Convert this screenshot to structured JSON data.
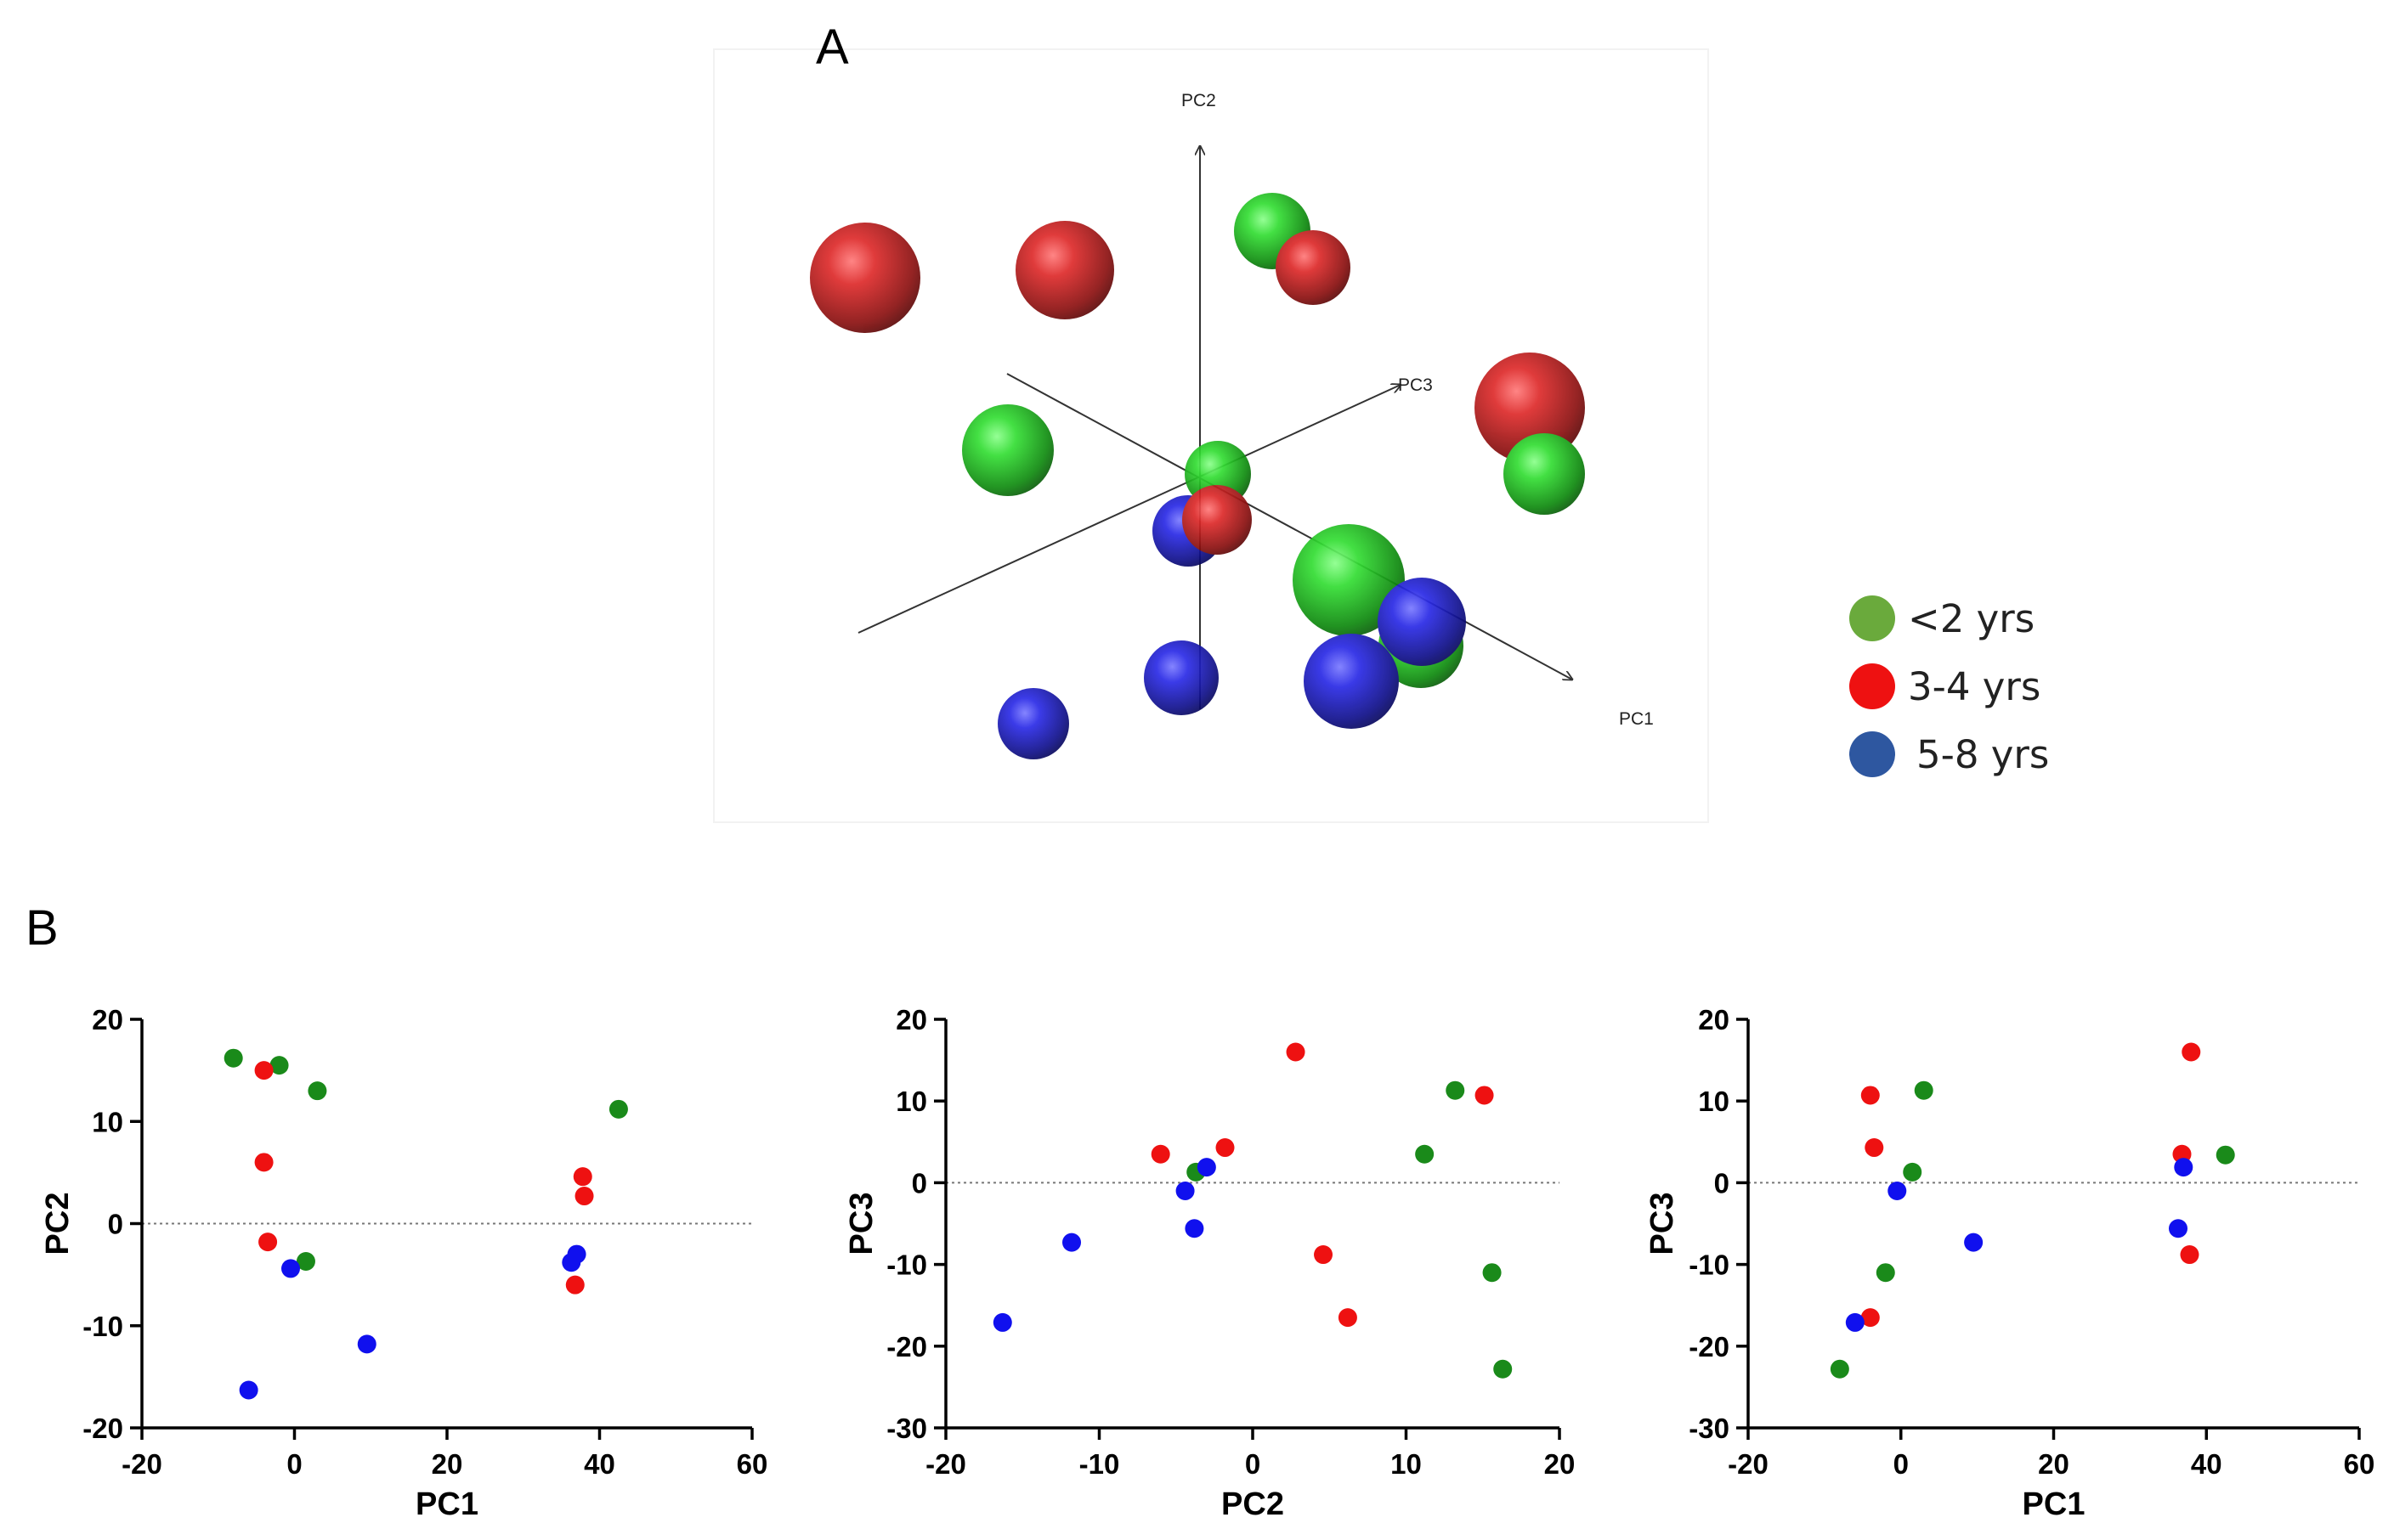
{
  "colors": {
    "green": "#1a8a1a",
    "red": "#ee1111",
    "blue": "#1010ee",
    "legend_green": "#6aaa3c",
    "legend_red": "#ee1111",
    "legend_blue": "#2e57a0"
  },
  "panel_a": {
    "letter": "A",
    "axes": {
      "x": "PC1",
      "y": "PC2",
      "z": "PC3"
    }
  },
  "panel_b": {
    "letter": "B"
  },
  "legend": {
    "items": [
      {
        "label": "<2 yrs",
        "color": "green"
      },
      {
        "label": "3-4 yrs",
        "color": "red"
      },
      {
        "label": "5-8 yrs",
        "color": "blue"
      }
    ]
  },
  "chart_data": [
    {
      "type": "scatter",
      "title": "",
      "xlabel": "PC1",
      "ylabel": "PC2",
      "xlim": [
        -20,
        60
      ],
      "ylim": [
        -20,
        20
      ],
      "xticks": [
        -20,
        0,
        20,
        40,
        60
      ],
      "yticks": [
        -20,
        -10,
        0,
        10,
        20
      ],
      "reference_line": 0,
      "series": [
        {
          "name": "<2 yrs",
          "color": "green",
          "points": [
            [
              -8,
              16.2
            ],
            [
              -2,
              15.5
            ],
            [
              3,
              13
            ],
            [
              1.5,
              -3.7
            ],
            [
              42.5,
              11.2
            ]
          ]
        },
        {
          "name": "3-4 yrs",
          "color": "red",
          "points": [
            [
              -4,
              15
            ],
            [
              -4,
              6
            ],
            [
              -3.5,
              -1.8
            ],
            [
              37.8,
              4.6
            ],
            [
              38,
              2.7
            ],
            [
              36.8,
              -6
            ]
          ]
        },
        {
          "name": "5-8 yrs",
          "color": "blue",
          "points": [
            [
              -0.5,
              -4.4
            ],
            [
              -6,
              -16.3
            ],
            [
              9.5,
              -11.8
            ],
            [
              37,
              -3
            ],
            [
              36.3,
              -3.8
            ]
          ]
        }
      ]
    },
    {
      "type": "scatter",
      "title": "",
      "xlabel": "PC2",
      "ylabel": "PC3",
      "xlim": [
        -20,
        20
      ],
      "ylim": [
        -30,
        20
      ],
      "xticks": [
        -20,
        -10,
        0,
        10,
        20
      ],
      "yticks": [
        -30,
        -20,
        -10,
        0,
        10,
        20
      ],
      "reference_line": 0,
      "series": [
        {
          "name": "<2 yrs",
          "color": "green",
          "points": [
            [
              13.2,
              11.3
            ],
            [
              11.2,
              3.5
            ],
            [
              -3.7,
              1.3
            ],
            [
              15.6,
              -11
            ],
            [
              16.3,
              -22.8
            ]
          ]
        },
        {
          "name": "3-4 yrs",
          "color": "red",
          "points": [
            [
              2.8,
              16
            ],
            [
              15.1,
              10.7
            ],
            [
              -6,
              3.5
            ],
            [
              -1.8,
              4.3
            ],
            [
              4.6,
              -8.8
            ],
            [
              6.2,
              -16.5
            ]
          ]
        },
        {
          "name": "5-8 yrs",
          "color": "blue",
          "points": [
            [
              -3,
              1.9
            ],
            [
              -4.4,
              -1
            ],
            [
              -3.8,
              -5.6
            ],
            [
              -11.8,
              -7.3
            ],
            [
              -16.3,
              -17.1
            ]
          ]
        }
      ]
    },
    {
      "type": "scatter",
      "title": "",
      "xlabel": "PC1",
      "ylabel": "PC3",
      "xlim": [
        -20,
        60
      ],
      "ylim": [
        -30,
        20
      ],
      "xticks": [
        -20,
        0,
        20,
        40,
        60
      ],
      "yticks": [
        -30,
        -20,
        -10,
        0,
        10,
        20
      ],
      "reference_line": 0,
      "series": [
        {
          "name": "<2 yrs",
          "color": "green",
          "points": [
            [
              3,
              11.3
            ],
            [
              1.5,
              1.3
            ],
            [
              42.5,
              3.4
            ],
            [
              -2,
              -11
            ],
            [
              -8,
              -22.8
            ]
          ]
        },
        {
          "name": "3-4 yrs",
          "color": "red",
          "points": [
            [
              -4,
              10.7
            ],
            [
              -3.5,
              4.3
            ],
            [
              38,
              16
            ],
            [
              36.8,
              3.5
            ],
            [
              37.8,
              -8.8
            ],
            [
              -4,
              -16.5
            ]
          ]
        },
        {
          "name": "5-8 yrs",
          "color": "blue",
          "points": [
            [
              37,
              1.9
            ],
            [
              -0.5,
              -1
            ],
            [
              36.3,
              -5.6
            ],
            [
              9.5,
              -7.3
            ],
            [
              -6,
              -17.1
            ]
          ]
        }
      ]
    }
  ]
}
